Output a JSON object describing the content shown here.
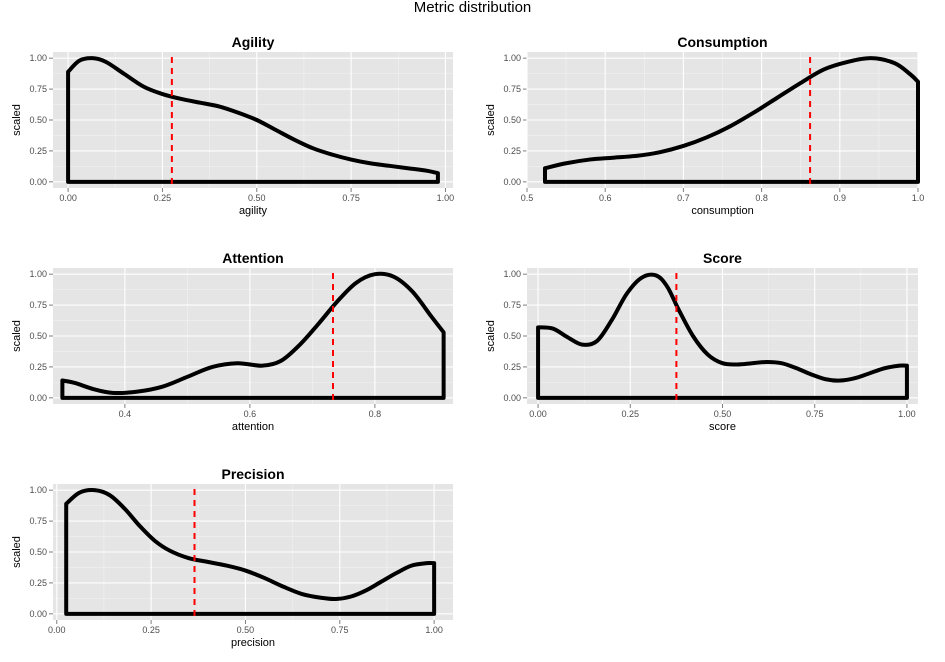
{
  "title": "Metric distribution",
  "chart_data": [
    {
      "type": "line",
      "title": "Agility",
      "xlabel": "agility",
      "ylabel": "scaled",
      "xlim": [
        -0.04,
        1.02
      ],
      "ylim": [
        -0.05,
        1.05
      ],
      "xticks": [
        0.0,
        0.25,
        0.5,
        0.75,
        1.0
      ],
      "xtick_labels": [
        "0.00",
        "0.25",
        "0.50",
        "0.75",
        "1.00"
      ],
      "yticks": [
        0.0,
        0.25,
        0.5,
        0.75,
        1.0
      ],
      "ytick_labels": [
        "0.00",
        "0.25",
        "0.50",
        "0.75",
        "1.00"
      ],
      "x": [
        0.0,
        0.03,
        0.065,
        0.1,
        0.15,
        0.2,
        0.25,
        0.3,
        0.35,
        0.4,
        0.45,
        0.5,
        0.55,
        0.6,
        0.65,
        0.7,
        0.75,
        0.8,
        0.85,
        0.9,
        0.95,
        0.98
      ],
      "y": [
        0.89,
        0.98,
        1.0,
        0.97,
        0.87,
        0.77,
        0.71,
        0.67,
        0.64,
        0.61,
        0.56,
        0.5,
        0.42,
        0.34,
        0.27,
        0.22,
        0.18,
        0.15,
        0.13,
        0.11,
        0.09,
        0.07
      ],
      "vline": 0.275
    },
    {
      "type": "line",
      "title": "Consumption",
      "xlabel": "consumption",
      "ylabel": "scaled",
      "xlim": [
        0.5,
        1.0
      ],
      "ylim": [
        -0.05,
        1.05
      ],
      "xticks": [
        0.5,
        0.6,
        0.7,
        0.8,
        0.9,
        1.0
      ],
      "xtick_labels": [
        "0.5",
        "0.6",
        "0.7",
        "0.8",
        "0.9",
        "1.0"
      ],
      "yticks": [
        0.0,
        0.25,
        0.5,
        0.75,
        1.0
      ],
      "ytick_labels": [
        "0.00",
        "0.25",
        "0.50",
        "0.75",
        "1.00"
      ],
      "x": [
        0.523,
        0.55,
        0.58,
        0.61,
        0.64,
        0.67,
        0.7,
        0.73,
        0.76,
        0.79,
        0.82,
        0.85,
        0.88,
        0.91,
        0.94,
        0.97,
        0.99,
        1.0
      ],
      "y": [
        0.11,
        0.15,
        0.18,
        0.195,
        0.21,
        0.24,
        0.29,
        0.36,
        0.45,
        0.56,
        0.68,
        0.8,
        0.91,
        0.97,
        1.0,
        0.96,
        0.87,
        0.81
      ],
      "vline": 0.862
    },
    {
      "type": "line",
      "title": "Attention",
      "xlabel": "attention",
      "ylabel": "scaled",
      "xlim": [
        0.285,
        0.925
      ],
      "ylim": [
        -0.05,
        1.05
      ],
      "xticks": [
        0.4,
        0.6,
        0.8
      ],
      "xtick_labels": [
        "0.4",
        "0.6",
        "0.8"
      ],
      "yticks": [
        0.0,
        0.25,
        0.5,
        0.75,
        1.0
      ],
      "ytick_labels": [
        "0.00",
        "0.25",
        "0.50",
        "0.75",
        "1.00"
      ],
      "x": [
        0.3,
        0.32,
        0.35,
        0.38,
        0.42,
        0.46,
        0.5,
        0.54,
        0.58,
        0.62,
        0.65,
        0.68,
        0.71,
        0.74,
        0.77,
        0.8,
        0.83,
        0.86,
        0.89,
        0.91
      ],
      "y": [
        0.14,
        0.12,
        0.07,
        0.04,
        0.05,
        0.09,
        0.17,
        0.25,
        0.28,
        0.26,
        0.3,
        0.43,
        0.6,
        0.78,
        0.93,
        1.0,
        0.98,
        0.86,
        0.66,
        0.53
      ],
      "vline": 0.733
    },
    {
      "type": "line",
      "title": "Score",
      "xlabel": "score",
      "ylabel": "scaled",
      "xlim": [
        -0.03,
        1.03
      ],
      "ylim": [
        -0.05,
        1.05
      ],
      "xticks": [
        0.0,
        0.25,
        0.5,
        0.75,
        1.0
      ],
      "xtick_labels": [
        "0.00",
        "0.25",
        "0.50",
        "0.75",
        "1.00"
      ],
      "yticks": [
        0.0,
        0.25,
        0.5,
        0.75,
        1.0
      ],
      "ytick_labels": [
        "0.00",
        "0.25",
        "0.50",
        "0.75",
        "1.00"
      ],
      "x": [
        0.0,
        0.04,
        0.08,
        0.12,
        0.16,
        0.2,
        0.24,
        0.28,
        0.32,
        0.35,
        0.38,
        0.42,
        0.46,
        0.5,
        0.54,
        0.58,
        0.62,
        0.66,
        0.7,
        0.74,
        0.78,
        0.82,
        0.86,
        0.9,
        0.94,
        0.98,
        1.0
      ],
      "y": [
        0.57,
        0.56,
        0.49,
        0.43,
        0.46,
        0.63,
        0.84,
        0.97,
        0.99,
        0.9,
        0.72,
        0.5,
        0.35,
        0.28,
        0.27,
        0.28,
        0.29,
        0.28,
        0.24,
        0.19,
        0.15,
        0.14,
        0.16,
        0.2,
        0.24,
        0.26,
        0.26
      ],
      "vline": 0.375
    },
    {
      "type": "line",
      "title": "Precision",
      "xlabel": "precision",
      "ylabel": "scaled",
      "xlim": [
        -0.01,
        1.05
      ],
      "ylim": [
        -0.05,
        1.05
      ],
      "xticks": [
        0.0,
        0.25,
        0.5,
        0.75,
        1.0
      ],
      "xtick_labels": [
        "0.00",
        "0.25",
        "0.50",
        "0.75",
        "1.00"
      ],
      "yticks": [
        0.0,
        0.25,
        0.5,
        0.75,
        1.0
      ],
      "ytick_labels": [
        "0.00",
        "0.25",
        "0.50",
        "0.75",
        "1.00"
      ],
      "x": [
        0.025,
        0.06,
        0.1,
        0.14,
        0.18,
        0.22,
        0.26,
        0.3,
        0.35,
        0.4,
        0.45,
        0.5,
        0.55,
        0.6,
        0.65,
        0.7,
        0.74,
        0.78,
        0.82,
        0.86,
        0.9,
        0.94,
        0.98,
        1.0
      ],
      "y": [
        0.89,
        0.98,
        1.0,
        0.96,
        0.85,
        0.71,
        0.59,
        0.51,
        0.45,
        0.42,
        0.39,
        0.35,
        0.29,
        0.22,
        0.16,
        0.13,
        0.12,
        0.14,
        0.19,
        0.26,
        0.33,
        0.39,
        0.41,
        0.41
      ],
      "vline": 0.365
    }
  ]
}
